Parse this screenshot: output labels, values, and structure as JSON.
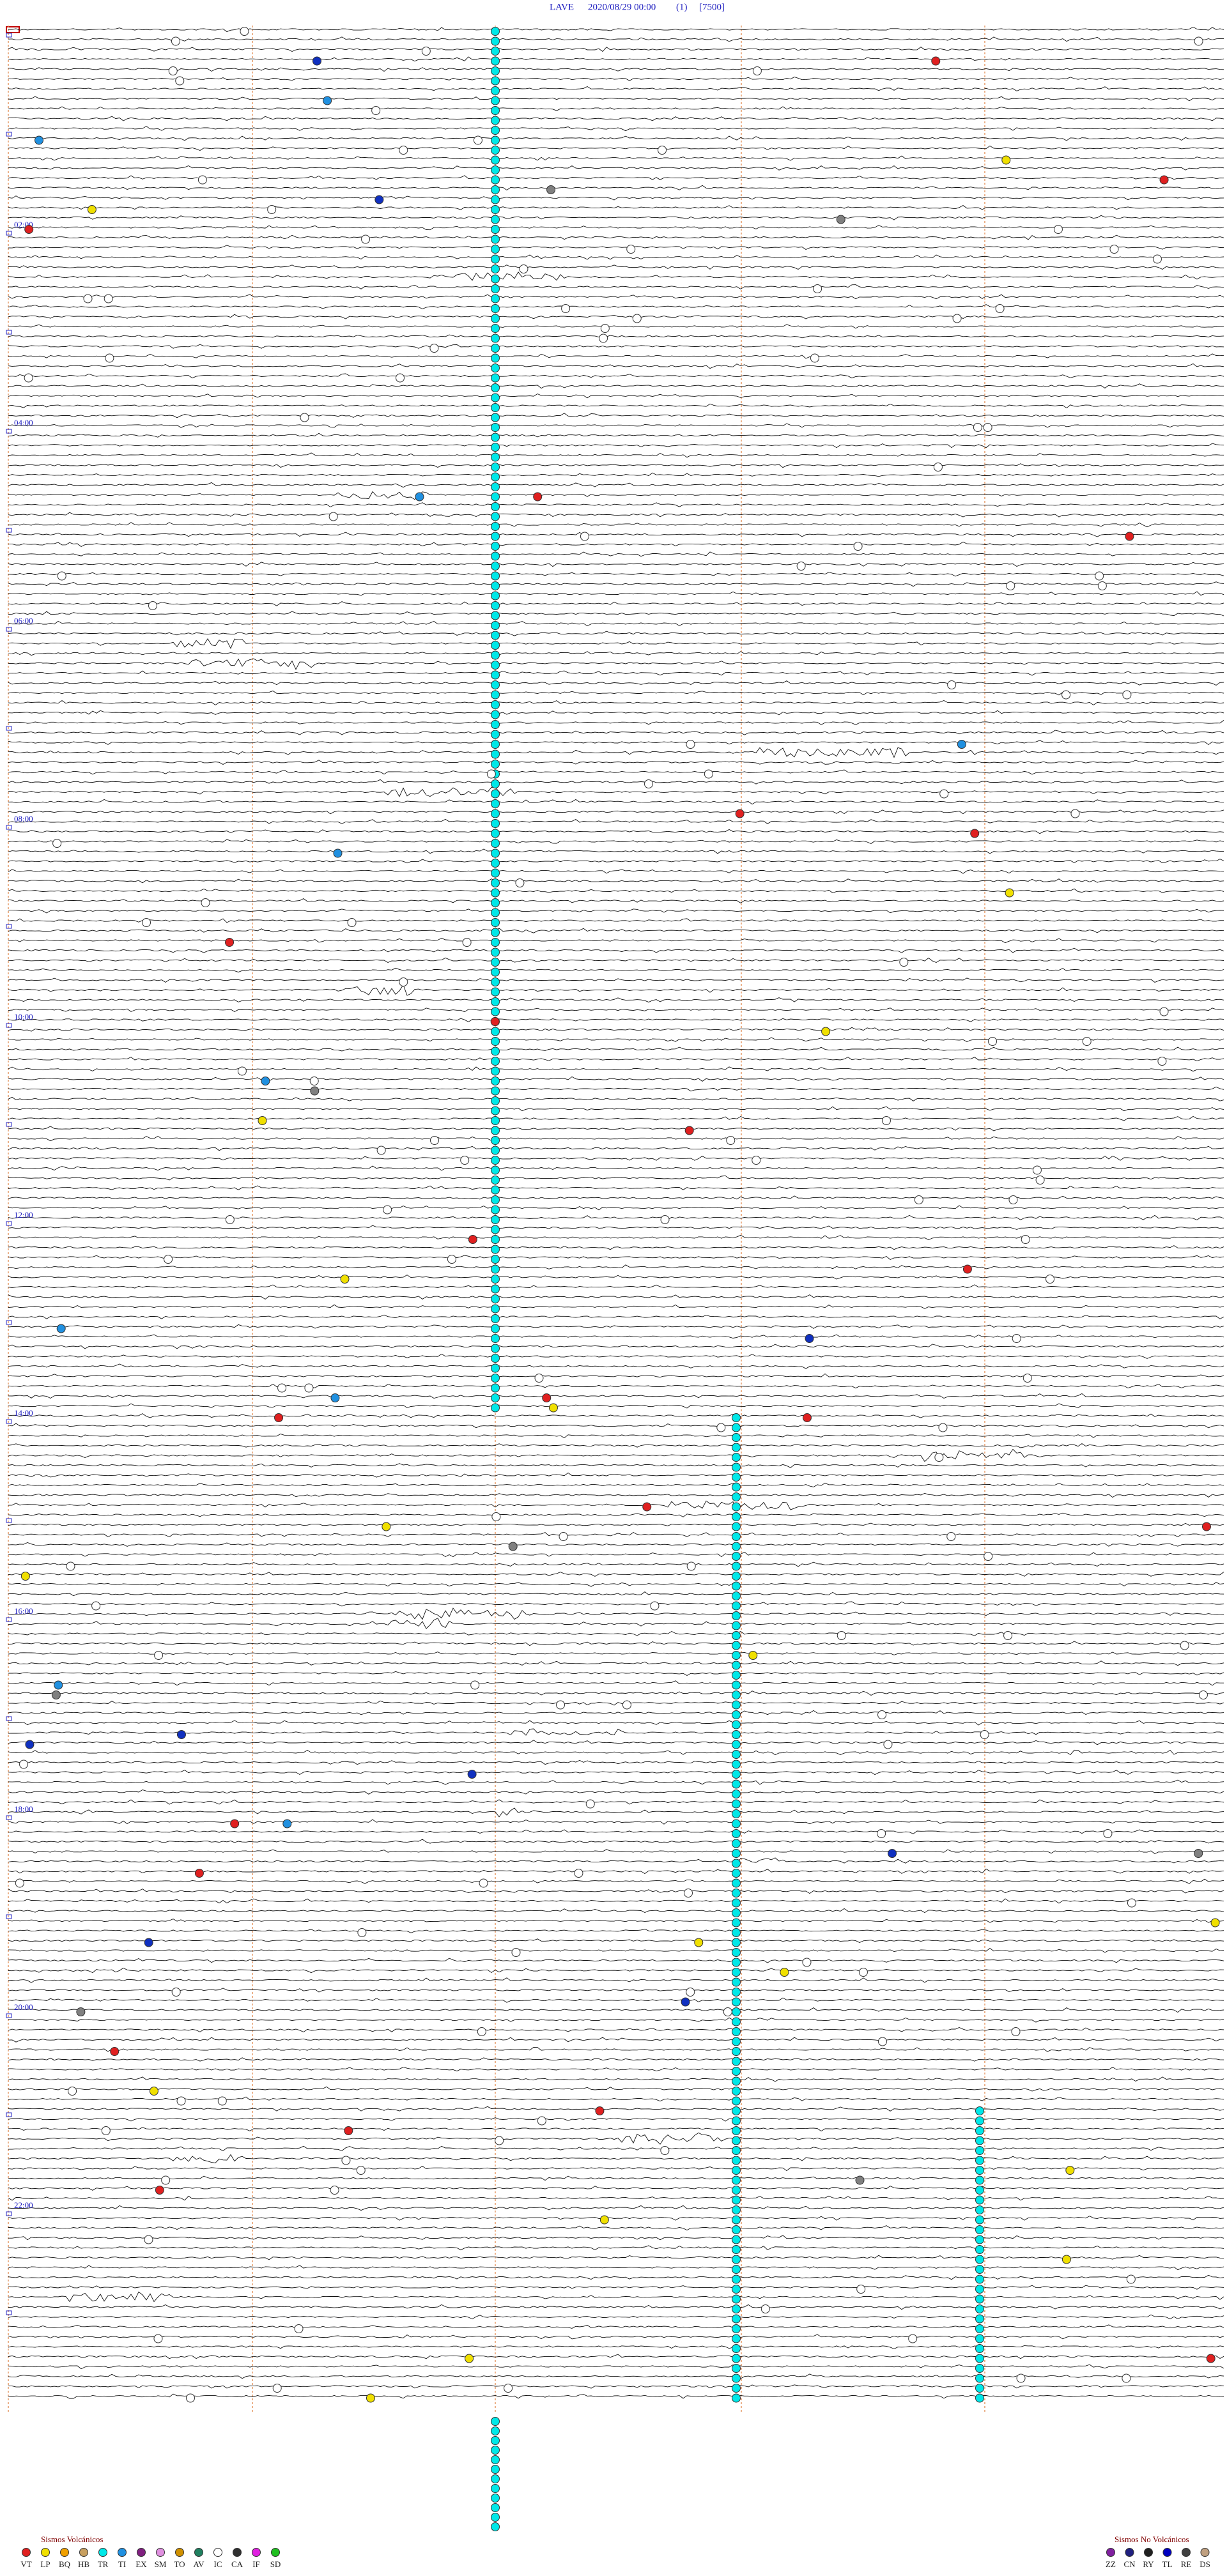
{
  "header": {
    "station": "LAVE",
    "datetime": "2020/08/29 00:00",
    "channel": "(1)",
    "scale": "[7500]"
  },
  "hour_labels": [
    "02:00",
    "04:00",
    "06:00",
    "08:00",
    "10:00",
    "12:00",
    "14:00",
    "16:00",
    "18:00",
    "20:00",
    "22:00"
  ],
  "legend": {
    "volcanic": {
      "title": "Sismos Volcánicos",
      "items": [
        {
          "code": "VT",
          "color": "#e02020"
        },
        {
          "code": "LP",
          "color": "#f0e000"
        },
        {
          "code": "BQ",
          "color": "#f0a000"
        },
        {
          "code": "HB",
          "color": "#c8a060"
        },
        {
          "code": "TR",
          "color": "#00e8e8"
        },
        {
          "code": "TI",
          "color": "#2090e0"
        },
        {
          "code": "EX",
          "color": "#802080"
        },
        {
          "code": "SM",
          "color": "#e090e0"
        },
        {
          "code": "TO",
          "color": "#d09000"
        },
        {
          "code": "AV",
          "color": "#208060"
        },
        {
          "code": "IC",
          "color": "#ffffff"
        },
        {
          "code": "CA",
          "color": "#303030"
        },
        {
          "code": "IF",
          "color": "#e020e0"
        },
        {
          "code": "SD",
          "color": "#20c020"
        }
      ]
    },
    "non_volcanic": {
      "title": "Sismos No Volcánicos",
      "items": [
        {
          "code": "ZZ",
          "color": "#8020a0"
        },
        {
          "code": "CN",
          "color": "#202080"
        },
        {
          "code": "RY",
          "color": "#202020"
        },
        {
          "code": "TL",
          "color": "#0000c0"
        },
        {
          "code": "RE",
          "color": "#404040"
        },
        {
          "code": "DS",
          "color": "#c0a080"
        }
      ]
    }
  }
}
